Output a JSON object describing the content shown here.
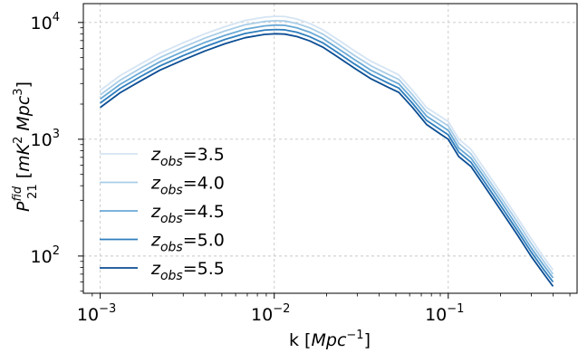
{
  "chart_data": {
    "type": "line",
    "x_scale": "log",
    "y_scale": "log",
    "xlim": [
      0.0008,
      0.55
    ],
    "ylim": [
      48,
      14500
    ],
    "grid": true,
    "legend_position": "lower-left",
    "xlabel": {
      "main": "k [",
      "var": "Mpc",
      "sup": "−1",
      "close": "]"
    },
    "ylabel": {
      "base": "P",
      "sup": "fid",
      "sub": "21",
      "open": " [",
      "u1": "mK",
      "u1sup": "2",
      "u2": " Mpc",
      "u2sup": "3",
      "close": "]"
    },
    "x_ticks": [
      {
        "value": 0.001,
        "base": "10",
        "exp": "−3"
      },
      {
        "value": 0.01,
        "base": "10",
        "exp": "−2"
      },
      {
        "value": 0.1,
        "base": "10",
        "exp": "−1"
      }
    ],
    "y_ticks": [
      {
        "value": 100,
        "base": "10",
        "exp": "2"
      },
      {
        "value": 1000,
        "base": "10",
        "exp": "3"
      },
      {
        "value": 10000,
        "base": "10",
        "exp": "4"
      }
    ],
    "k": [
      0.001,
      0.0013,
      0.0017,
      0.0022,
      0.003,
      0.004,
      0.0052,
      0.0068,
      0.0088,
      0.0102,
      0.0115,
      0.0135,
      0.016,
      0.019,
      0.023,
      0.029,
      0.036,
      0.045,
      0.052,
      0.062,
      0.075,
      0.09,
      0.1,
      0.115,
      0.135,
      0.16,
      0.2,
      0.25,
      0.3,
      0.35,
      0.4
    ],
    "series": [
      {
        "z": "3.5",
        "label_pre": "z",
        "label_sub": "obs",
        "label_val": "=3.5",
        "color": "#d5e4f3",
        "values": [
          2620,
          3500,
          4400,
          5450,
          6700,
          8000,
          9200,
          10400,
          11100,
          11300,
          11250,
          10700,
          9800,
          8650,
          7200,
          5700,
          4650,
          3950,
          3550,
          2650,
          1870,
          1570,
          1420,
          1000,
          820,
          570,
          350,
          212,
          140,
          100,
          76
        ]
      },
      {
        "z": "4.0",
        "label_pre": "z",
        "label_sub": "obs",
        "label_val": "=4.0",
        "color": "#a9cde7",
        "values": [
          2400,
          3200,
          4050,
          5000,
          6150,
          7350,
          8450,
          9550,
          10200,
          10350,
          10300,
          9800,
          9000,
          7950,
          6600,
          5200,
          4250,
          3600,
          3250,
          2430,
          1720,
          1440,
          1300,
          920,
          750,
          520,
          320,
          195,
          128,
          92,
          70
        ]
      },
      {
        "z": "4.5",
        "label_pre": "z",
        "label_sub": "obs",
        "label_val": "=4.5",
        "color": "#6aa9d5",
        "values": [
          2210,
          2950,
          3720,
          4600,
          5650,
          6750,
          7750,
          8750,
          9350,
          9500,
          9450,
          9000,
          8250,
          7300,
          6050,
          4800,
          3900,
          3300,
          2980,
          2230,
          1580,
          1320,
          1190,
          840,
          690,
          480,
          295,
          178,
          117,
          85,
          65
        ]
      },
      {
        "z": "5.0",
        "label_pre": "z",
        "label_sub": "obs",
        "label_val": "=5.0",
        "color": "#2f7ebd",
        "values": [
          2040,
          2720,
          3430,
          4240,
          5200,
          6200,
          7150,
          8050,
          8600,
          8700,
          8650,
          8250,
          7550,
          6700,
          5550,
          4400,
          3580,
          3030,
          2740,
          2050,
          1450,
          1210,
          1090,
          775,
          635,
          440,
          270,
          164,
          108,
          78,
          60
        ]
      },
      {
        "z": "5.5",
        "label_pre": "z",
        "label_sub": "obs",
        "label_val": "=5.5",
        "color": "#0b4d93",
        "values": [
          1870,
          2500,
          3150,
          3900,
          4780,
          5700,
          6570,
          7400,
          7900,
          8000,
          7950,
          7580,
          6950,
          6150,
          5100,
          4050,
          3290,
          2790,
          2520,
          1890,
          1340,
          1110,
          1000,
          710,
          585,
          405,
          248,
          151,
          99,
          72,
          55
        ]
      }
    ]
  }
}
